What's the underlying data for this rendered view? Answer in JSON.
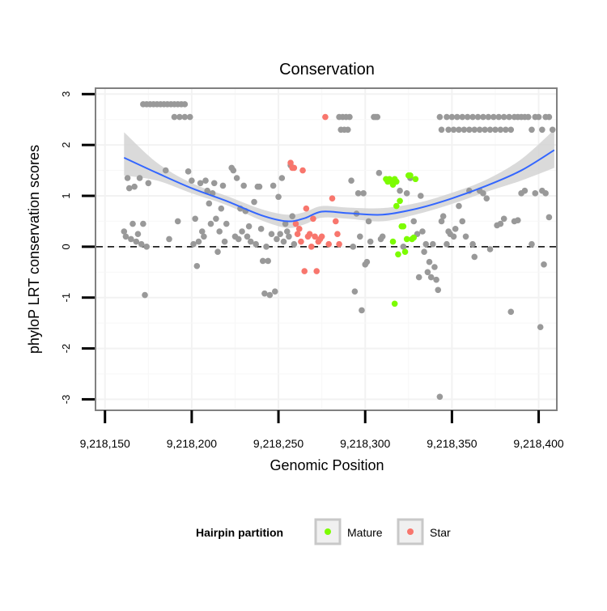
{
  "chart_data": {
    "type": "scatter",
    "title": "Conservation",
    "xlabel": "Genomic Position",
    "ylabel": "phyloP LRT conservation scores",
    "xlim": [
      9218145,
      9218410
    ],
    "ylim": [
      -3.2,
      3.1
    ],
    "xticks": [
      9218150,
      9218200,
      9218250,
      9218300,
      9218350,
      9218400
    ],
    "xtick_labels": [
      "9,218,150",
      "9,218,200",
      "9,218,250",
      "9,218,300",
      "9,218,350",
      "9,218,400"
    ],
    "yticks": [
      -3,
      -2,
      -1,
      0,
      1,
      2,
      3
    ],
    "ytick_labels": [
      "-3",
      "-2",
      "-1",
      "0",
      "1",
      "2",
      "3"
    ],
    "grid": true,
    "reference_line": {
      "y": 0,
      "style": "dashed"
    },
    "legend": {
      "title": "Hairpin partition",
      "placement": "bottom",
      "entries": [
        {
          "label": "Mature",
          "color": "#7CFC00"
        },
        {
          "label": "Star",
          "color": "#F8766D"
        }
      ]
    },
    "colors": {
      "Other": "#999999",
      "Mature": "#7CFC00",
      "Star": "#F8766D",
      "smooth": "#3366FF",
      "band": "#D3D3D3"
    },
    "smooth": {
      "x": [
        9218161,
        9218180,
        9218200,
        9218220,
        9218240,
        9218255,
        9218265,
        9218275,
        9218290,
        9218310,
        9218330,
        9218350,
        9218370,
        9218390,
        9218409
      ],
      "y": [
        1.75,
        1.45,
        1.15,
        0.9,
        0.62,
        0.5,
        0.56,
        0.69,
        0.66,
        0.63,
        0.75,
        0.95,
        1.2,
        1.5,
        1.9
      ],
      "lower": [
        1.4,
        1.3,
        1.05,
        0.82,
        0.52,
        0.37,
        0.44,
        0.57,
        0.55,
        0.5,
        0.64,
        0.84,
        1.08,
        1.3,
        1.55
      ],
      "upper": [
        2.25,
        1.65,
        1.25,
        1.0,
        0.74,
        0.63,
        0.68,
        0.8,
        0.77,
        0.76,
        0.86,
        1.06,
        1.32,
        1.72,
        2.3
      ]
    },
    "series": [
      {
        "name": "Other",
        "points": [
          [
            9218161,
            0.3
          ],
          [
            9218162,
            0.2
          ],
          [
            9218163,
            1.35
          ],
          [
            9218164,
            1.15
          ],
          [
            9218165,
            0.15
          ],
          [
            9218166,
            0.45
          ],
          [
            9218167,
            1.18
          ],
          [
            9218168,
            0.1
          ],
          [
            9218169,
            0.25
          ],
          [
            9218170,
            1.35
          ],
          [
            9218171,
            0.05
          ],
          [
            9218172,
            0.45
          ],
          [
            9218173,
            -0.95
          ],
          [
            9218174,
            0.0
          ],
          [
            9218175,
            1.25
          ],
          [
            9218172,
            2.8
          ],
          [
            9218174,
            2.8
          ],
          [
            9218176,
            2.8
          ],
          [
            9218178,
            2.8
          ],
          [
            9218180,
            2.8
          ],
          [
            9218182,
            2.8
          ],
          [
            9218184,
            2.8
          ],
          [
            9218186,
            2.8
          ],
          [
            9218188,
            2.8
          ],
          [
            9218190,
            2.8
          ],
          [
            9218192,
            2.8
          ],
          [
            9218194,
            2.8
          ],
          [
            9218196,
            2.8
          ],
          [
            9218185,
            1.5
          ],
          [
            9218187,
            0.15
          ],
          [
            9218190,
            2.55
          ],
          [
            9218193,
            2.55
          ],
          [
            9218196,
            2.55
          ],
          [
            9218199,
            2.55
          ],
          [
            9218192,
            0.5
          ],
          [
            9218198,
            1.48
          ],
          [
            9218200,
            1.3
          ],
          [
            9218201,
            0.05
          ],
          [
            9218202,
            0.55
          ],
          [
            9218203,
            -0.38
          ],
          [
            9218204,
            0.1
          ],
          [
            9218205,
            1.25
          ],
          [
            9218206,
            0.3
          ],
          [
            9218207,
            0.2
          ],
          [
            9218208,
            1.3
          ],
          [
            9218209,
            1.1
          ],
          [
            9218210,
            0.85
          ],
          [
            9218211,
            0.45
          ],
          [
            9218212,
            1.05
          ],
          [
            9218213,
            1.25
          ],
          [
            9218214,
            0.55
          ],
          [
            9218215,
            -0.1
          ],
          [
            9218216,
            0.3
          ],
          [
            9218217,
            0.75
          ],
          [
            9218218,
            1.2
          ],
          [
            9218219,
            0.1
          ],
          [
            9218220,
            0.45
          ],
          [
            9218223,
            1.55
          ],
          [
            9218224,
            1.5
          ],
          [
            9218225,
            0.2
          ],
          [
            9218226,
            1.35
          ],
          [
            9218227,
            0.15
          ],
          [
            9218228,
            0.75
          ],
          [
            9218229,
            0.3
          ],
          [
            9218230,
            1.2
          ],
          [
            9218231,
            0.7
          ],
          [
            9218232,
            0.2
          ],
          [
            9218233,
            0.4
          ],
          [
            9218234,
            0.1
          ],
          [
            9218236,
            0.88
          ],
          [
            9218237,
            0.05
          ],
          [
            9218238,
            1.18
          ],
          [
            9218239,
            1.18
          ],
          [
            9218240,
            0.35
          ],
          [
            9218241,
            -0.28
          ],
          [
            9218242,
            -0.92
          ],
          [
            9218243,
            0.0
          ],
          [
            9218244,
            -0.28
          ],
          [
            9218245,
            -0.95
          ],
          [
            9218246,
            0.25
          ],
          [
            9218247,
            1.2
          ],
          [
            9218248,
            -0.88
          ],
          [
            9218249,
            0.15
          ],
          [
            9218250,
            0.98
          ],
          [
            9218251,
            0.25
          ],
          [
            9218252,
            1.35
          ],
          [
            9218253,
            0.1
          ],
          [
            9218254,
            0.45
          ],
          [
            9218255,
            0.3
          ],
          [
            9218256,
            0.2
          ],
          [
            9218257,
            1.6
          ],
          [
            9218258,
            0.6
          ],
          [
            9218259,
            0.05
          ],
          [
            9218285,
            2.55
          ],
          [
            9218286,
            2.3
          ],
          [
            9218287,
            2.55
          ],
          [
            9218288,
            2.3
          ],
          [
            9218289,
            2.55
          ],
          [
            9218290,
            2.3
          ],
          [
            9218291,
            2.55
          ],
          [
            9218292,
            1.3
          ],
          [
            9218293,
            0.0
          ],
          [
            9218294,
            -0.88
          ],
          [
            9218295,
            0.65
          ],
          [
            9218296,
            1.05
          ],
          [
            9218297,
            0.2
          ],
          [
            9218298,
            -1.25
          ],
          [
            9218299,
            1.05
          ],
          [
            9218300,
            -0.35
          ],
          [
            9218301,
            -0.3
          ],
          [
            9218302,
            0.5
          ],
          [
            9218303,
            0.1
          ],
          [
            9218305,
            2.55
          ],
          [
            9218306,
            2.55
          ],
          [
            9218307,
            2.55
          ],
          [
            9218308,
            1.45
          ],
          [
            9218309,
            0.15
          ],
          [
            9218310,
            0.2
          ],
          [
            9218320,
            1.1
          ],
          [
            9218322,
            0.0
          ],
          [
            9218324,
            1.05
          ],
          [
            9218326,
            1.35
          ],
          [
            9218328,
            0.5
          ],
          [
            9218330,
            0.25
          ],
          [
            9218331,
            -0.6
          ],
          [
            9218332,
            1.0
          ],
          [
            9218333,
            0.3
          ],
          [
            9218334,
            -0.1
          ],
          [
            9218335,
            0.05
          ],
          [
            9218336,
            -0.5
          ],
          [
            9218337,
            -0.3
          ],
          [
            9218338,
            -0.6
          ],
          [
            9218339,
            0.05
          ],
          [
            9218340,
            -0.4
          ],
          [
            9218341,
            -0.65
          ],
          [
            9218342,
            -0.85
          ],
          [
            9218343,
            -2.95
          ],
          [
            9218344,
            0.5
          ],
          [
            9218345,
            0.6
          ],
          [
            9218343,
            2.55
          ],
          [
            9218344,
            2.3
          ],
          [
            9218347,
            2.55
          ],
          [
            9218348,
            2.3
          ],
          [
            9218350,
            2.55
          ],
          [
            9218351,
            2.3
          ],
          [
            9218353,
            2.55
          ],
          [
            9218354,
            2.3
          ],
          [
            9218356,
            2.55
          ],
          [
            9218357,
            2.3
          ],
          [
            9218359,
            2.55
          ],
          [
            9218360,
            2.3
          ],
          [
            9218362,
            2.55
          ],
          [
            9218363,
            2.3
          ],
          [
            9218365,
            2.55
          ],
          [
            9218366,
            2.3
          ],
          [
            9218368,
            2.55
          ],
          [
            9218369,
            2.3
          ],
          [
            9218371,
            2.55
          ],
          [
            9218372,
            2.3
          ],
          [
            9218374,
            2.55
          ],
          [
            9218375,
            2.3
          ],
          [
            9218377,
            2.55
          ],
          [
            9218378,
            2.3
          ],
          [
            9218380,
            2.55
          ],
          [
            9218381,
            2.3
          ],
          [
            9218383,
            2.55
          ],
          [
            9218384,
            2.3
          ],
          [
            9218386,
            2.55
          ],
          [
            9218388,
            2.55
          ],
          [
            9218390,
            2.55
          ],
          [
            9218392,
            2.55
          ],
          [
            9218394,
            2.55
          ],
          [
            9218396,
            2.3
          ],
          [
            9218398,
            2.55
          ],
          [
            9218400,
            2.55
          ],
          [
            9218402,
            2.3
          ],
          [
            9218404,
            2.55
          ],
          [
            9218406,
            2.55
          ],
          [
            9218408,
            2.3
          ],
          [
            9218347,
            0.05
          ],
          [
            9218348,
            0.3
          ],
          [
            9218349,
            0.25
          ],
          [
            9218351,
            0.2
          ],
          [
            9218352,
            0.35
          ],
          [
            9218354,
            0.8
          ],
          [
            9218356,
            0.5
          ],
          [
            9218358,
            0.2
          ],
          [
            9218360,
            1.1
          ],
          [
            9218362,
            0.05
          ],
          [
            9218363,
            -0.2
          ],
          [
            9218366,
            1.1
          ],
          [
            9218368,
            1.05
          ],
          [
            9218370,
            0.95
          ],
          [
            9218372,
            -0.05
          ],
          [
            9218376,
            0.42
          ],
          [
            9218378,
            0.45
          ],
          [
            9218380,
            0.55
          ],
          [
            9218384,
            -1.28
          ],
          [
            9218386,
            0.5
          ],
          [
            9218388,
            0.52
          ],
          [
            9218390,
            1.05
          ],
          [
            9218392,
            1.1
          ],
          [
            9218396,
            0.05
          ],
          [
            9218398,
            1.05
          ],
          [
            9218401,
            -1.58
          ],
          [
            9218402,
            1.1
          ],
          [
            9218403,
            -0.35
          ],
          [
            9218404,
            1.05
          ],
          [
            9218406,
            0.58
          ]
        ]
      },
      {
        "name": "Mature",
        "points": [
          [
            9218312,
            1.33
          ],
          [
            9218313,
            1.28
          ],
          [
            9218314,
            1.33
          ],
          [
            9218315,
            1.28
          ],
          [
            9218316,
            1.22
          ],
          [
            9218317,
            1.33
          ],
          [
            9218318,
            1.28
          ],
          [
            9218316,
            0.1
          ],
          [
            9218317,
            -1.12
          ],
          [
            9218318,
            0.8
          ],
          [
            9218319,
            -0.15
          ],
          [
            9218320,
            0.9
          ],
          [
            9218321,
            0.4
          ],
          [
            9218322,
            0.4
          ],
          [
            9218323,
            -0.1
          ],
          [
            9218324,
            0.15
          ],
          [
            9218325,
            1.4
          ],
          [
            9218326,
            1.4
          ],
          [
            9218327,
            0.15
          ],
          [
            9218328,
            0.18
          ],
          [
            9218329,
            1.33
          ]
        ]
      },
      {
        "name": "Star",
        "points": [
          [
            9218257,
            1.65
          ],
          [
            9218258,
            1.55
          ],
          [
            9218259,
            1.55
          ],
          [
            9218260,
            0.45
          ],
          [
            9218261,
            0.25
          ],
          [
            9218262,
            0.35
          ],
          [
            9218263,
            0.1
          ],
          [
            9218264,
            1.5
          ],
          [
            9218265,
            -0.48
          ],
          [
            9218266,
            0.75
          ],
          [
            9218267,
            0.2
          ],
          [
            9218268,
            0.25
          ],
          [
            9218269,
            0.0
          ],
          [
            9218270,
            0.55
          ],
          [
            9218271,
            0.2
          ],
          [
            9218272,
            -0.48
          ],
          [
            9218273,
            0.1
          ],
          [
            9218274,
            0.15
          ],
          [
            9218275,
            0.2
          ],
          [
            9218277,
            2.55
          ],
          [
            9218279,
            0.05
          ],
          [
            9218281,
            0.95
          ],
          [
            9218283,
            0.5
          ],
          [
            9218284,
            0.25
          ],
          [
            9218285,
            0.05
          ]
        ]
      }
    ]
  }
}
